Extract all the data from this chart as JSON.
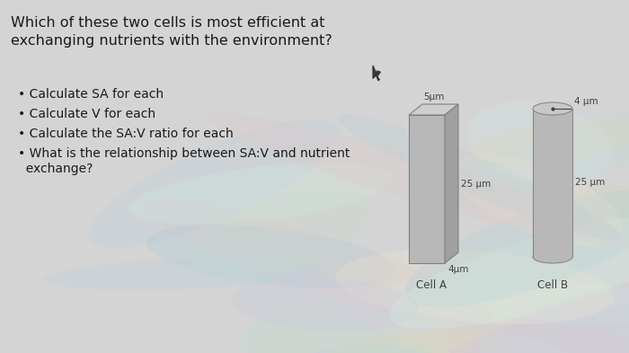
{
  "background_color": "#d4d4d4",
  "title_text": "Which of these two cells is most efficient at\nexchanging nutrients with the environment?",
  "title_fontsize": 11.5,
  "bullet_points": [
    "Calculate SA for each",
    "Calculate V for each",
    "Calculate the SA:V ratio for each",
    "What is the relationship between SA:V and nutrient\n  exchange?"
  ],
  "bullet_fontsize": 10,
  "cell_a_label": "Cell A",
  "cell_b_label": "Cell B",
  "cell_a_dims": {
    "width_label": "5μm",
    "height_label": "25 μm",
    "depth_label": "4μm"
  },
  "cell_b_dims": {
    "radius_label": "4 μm",
    "height_label": "25 μm"
  },
  "box_face_color": "#b8b8b8",
  "box_top_color": "#cecece",
  "box_right_color": "#a0a0a0",
  "box_edge_color": "#808080",
  "cylinder_face_color": "#b8b8b8",
  "cylinder_top_color": "#c8c8c8",
  "cylinder_edge_color": "#888888",
  "label_color": "#404040",
  "text_color": "#1a1a1a",
  "swirl_params": {
    "seed": 7,
    "n": 25
  }
}
